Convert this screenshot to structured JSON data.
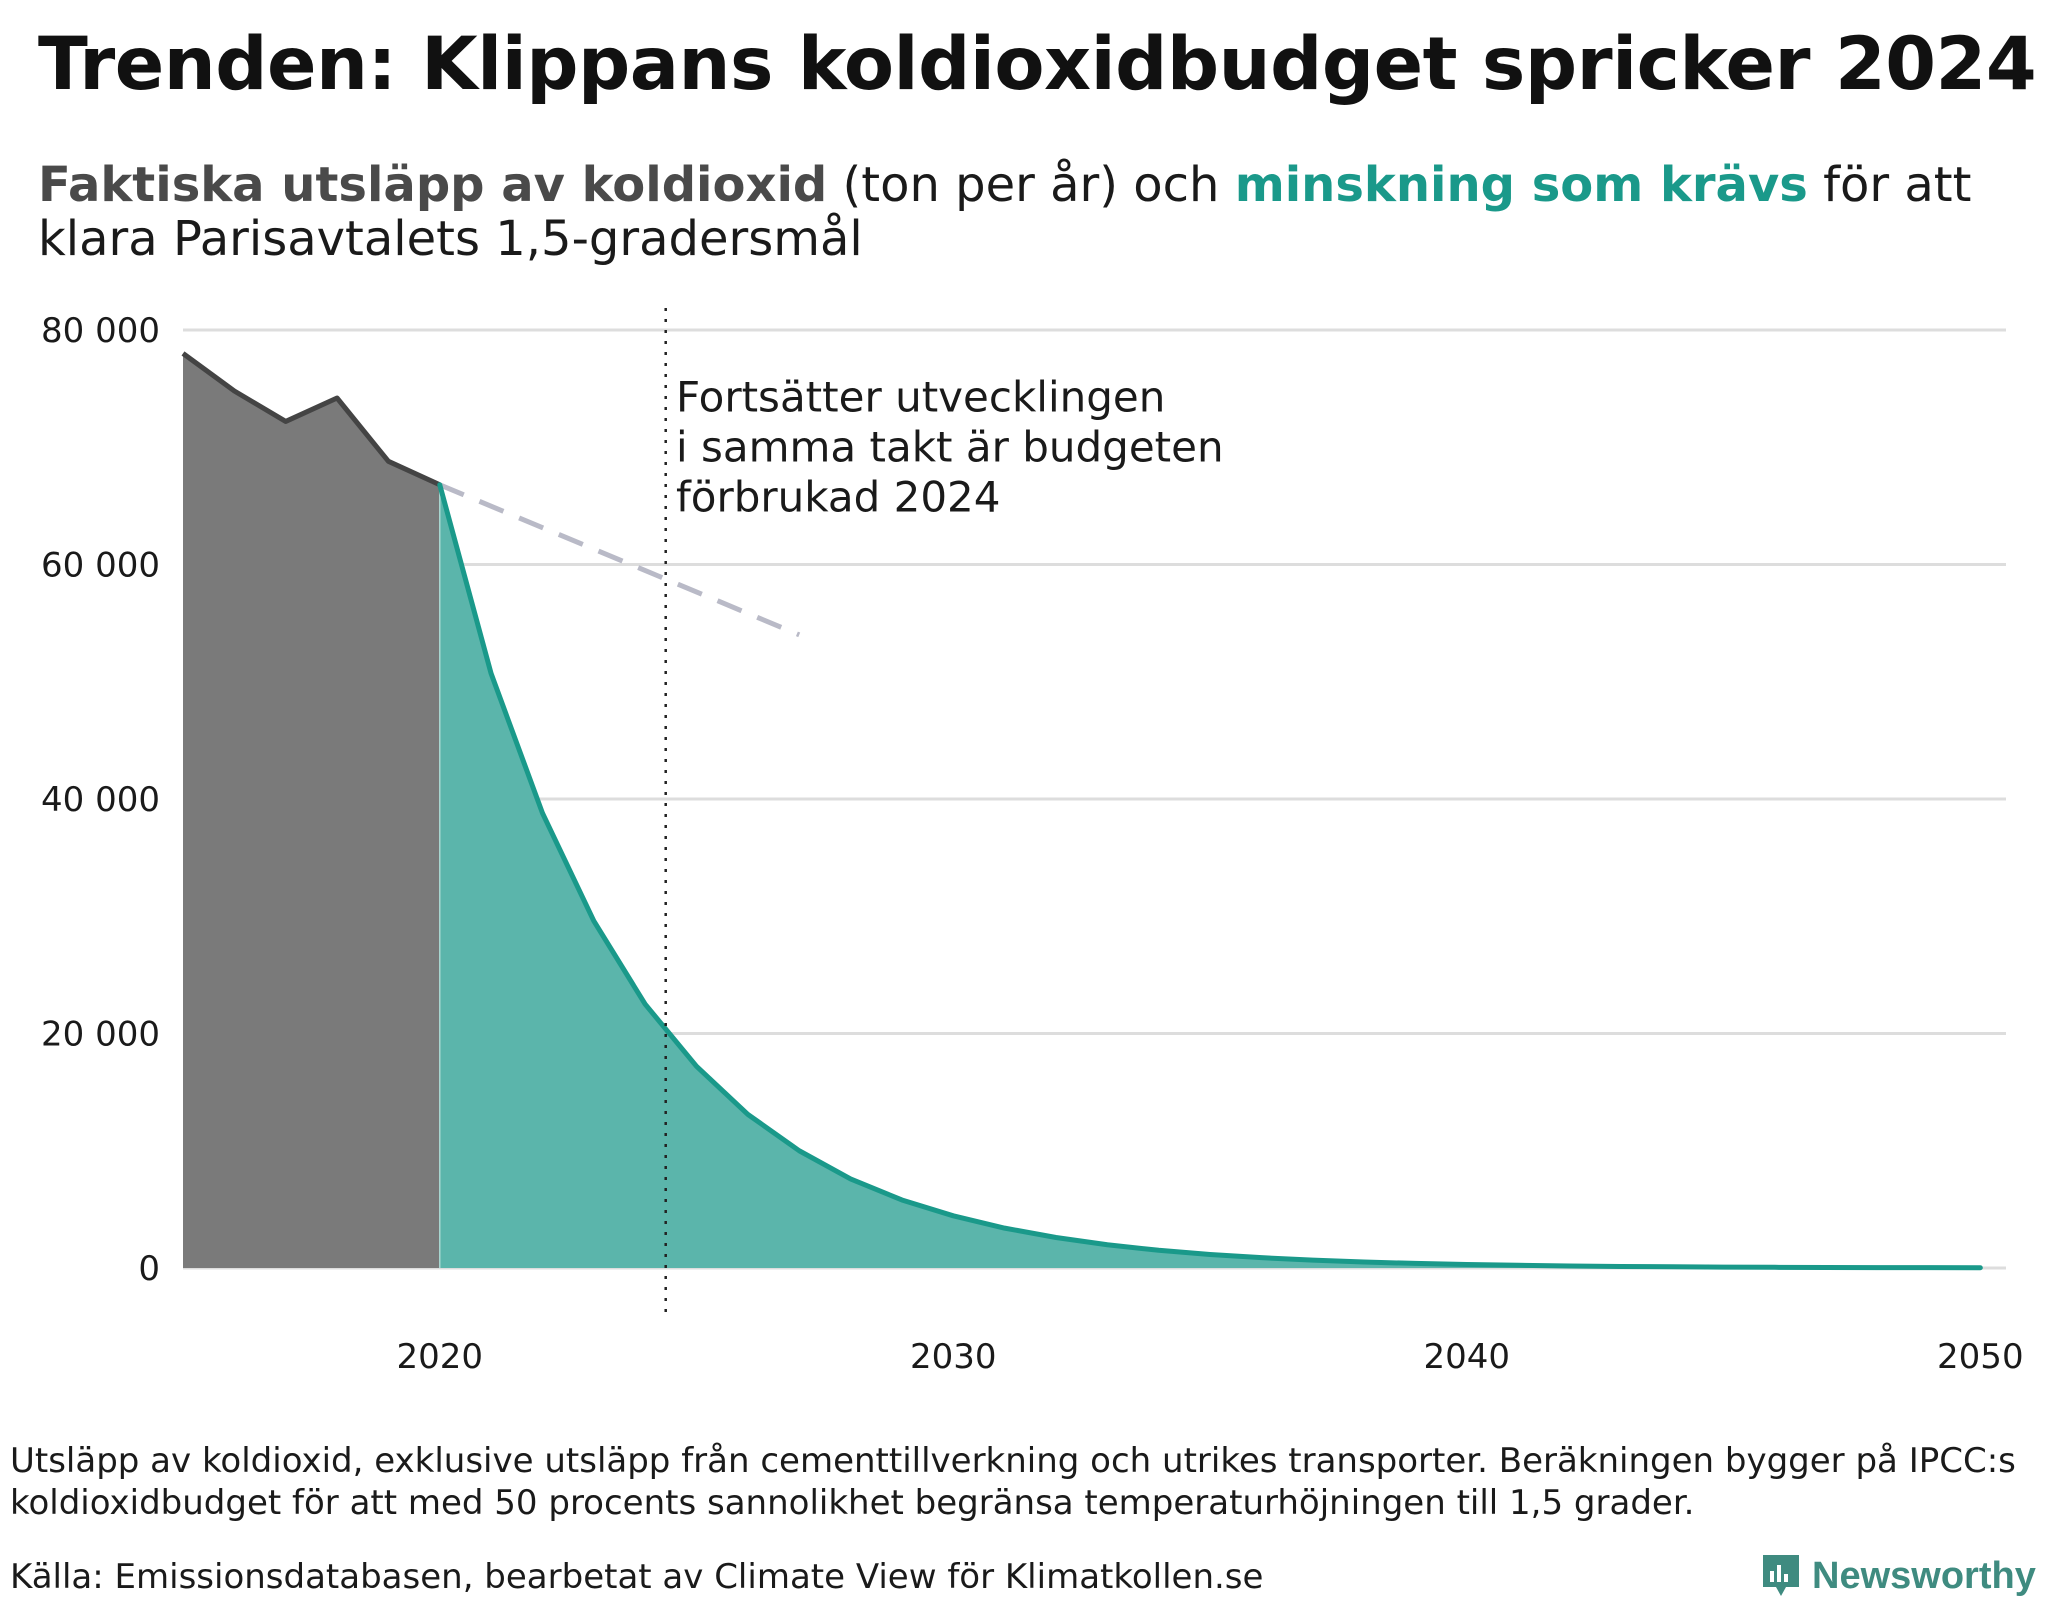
{
  "title": "Trenden: Klippans koldioxidbudget spricker 2024",
  "subtitle": {
    "part1": "Faktiska utsläpp av koldioxid",
    "part2": " (ton per år) och ",
    "part3": "minskning som krävs",
    "part4": " för att klara Parisavtalets 1,5-gradersmål"
  },
  "colors": {
    "actual_fill": "#7a7a7a",
    "actual_line": "#444444",
    "required_fill": "#5bb5ab",
    "required_line": "#1a998a",
    "trend_dash": "#b9bac7",
    "grid": "#dddddd"
  },
  "chart_data": {
    "type": "area",
    "title": "Trenden: Klippans koldioxidbudget spricker 2024",
    "xlabel": "",
    "ylabel": "ton per år",
    "xlim": [
      2015,
      2050.5
    ],
    "ylim": [
      0,
      80000
    ],
    "x_ticks": [
      2020,
      2030,
      2040,
      2050
    ],
    "y_ticks": [
      0,
      20000,
      40000,
      60000,
      80000
    ],
    "y_tick_labels": [
      "0",
      "20 000",
      "40 000",
      "60 000",
      "80 000"
    ],
    "grid": true,
    "series": [
      {
        "name": "Faktiska utsläpp av koldioxid",
        "x": [
          2015,
          2016,
          2017,
          2018,
          2019,
          2020
        ],
        "values": [
          78000,
          74800,
          72200,
          74200,
          68800,
          66800
        ]
      },
      {
        "name": "Minskning som krävs",
        "x": [
          2020,
          2021,
          2022,
          2023,
          2024,
          2025,
          2026,
          2027,
          2028,
          2029,
          2030,
          2031,
          2032,
          2033,
          2034,
          2035,
          2036,
          2037,
          2038,
          2039,
          2040,
          2041,
          2042,
          2043,
          2044,
          2045,
          2046,
          2047,
          2048,
          2049,
          2050
        ],
        "values": [
          66800,
          50700,
          38800,
          29600,
          22500,
          17200,
          13100,
          10000,
          7600,
          5800,
          4450,
          3400,
          2600,
          1980,
          1510,
          1150,
          880,
          670,
          510,
          390,
          300,
          230,
          175,
          133,
          102,
          78,
          59,
          45,
          35,
          27,
          20
        ]
      },
      {
        "name": "Fortsatt trend",
        "style": "dashed",
        "x": [
          2020,
          2027
        ],
        "values": [
          66800,
          54000
        ]
      }
    ],
    "markers": [
      {
        "type": "vline",
        "x": 2024.4,
        "style": "dotted"
      }
    ],
    "annotations": [
      {
        "text": [
          "Fortsätter utvecklingen",
          "i samma takt är budgeten",
          "förbrukad 2024"
        ],
        "x": 2024.6,
        "y": 64500
      }
    ]
  },
  "footnote": "Utsläpp av koldioxid, exklusive utsläpp från cementtillverkning och utrikes transporter. Beräkningen bygger på IPCC:s koldioxidbudget för att med 50 procents sannolikhet begränsa temperaturhöjningen till 1,5 grader.",
  "source": "Källa: Emissionsdatabasen, bearbetat av Climate View för Klimatkollen.se",
  "brand": {
    "name": "Newsworthy",
    "icon": "newsworthy-logo-icon",
    "color": "#3f8b80"
  }
}
